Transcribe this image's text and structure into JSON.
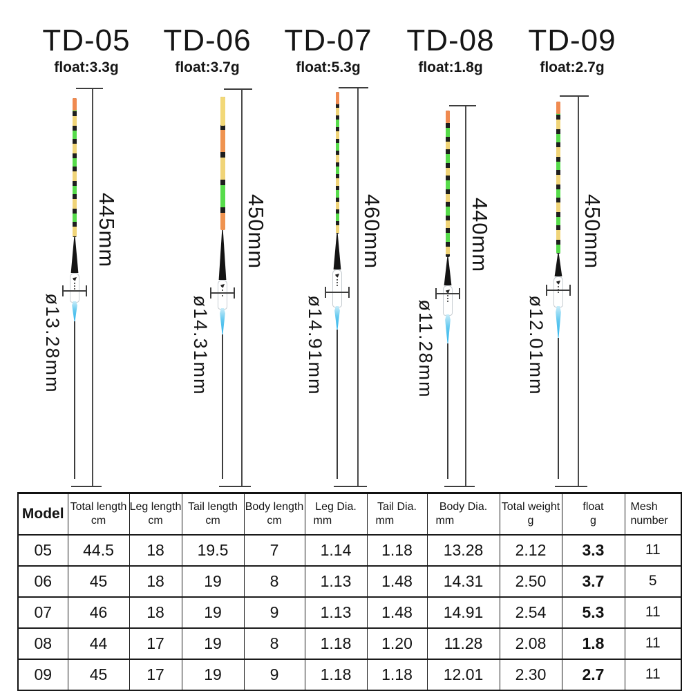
{
  "products": [
    {
      "model": "TD-05",
      "float_label": "float:3.3g",
      "length_label": "445mm",
      "diameter_label": "ø13.28mm"
    },
    {
      "model": "TD-06",
      "float_label": "float:3.7g",
      "length_label": "450mm",
      "diameter_label": "ø14.31mm"
    },
    {
      "model": "TD-07",
      "float_label": "float:5.3g",
      "length_label": "460mm",
      "diameter_label": "ø14.91mm"
    },
    {
      "model": "TD-08",
      "float_label": "float:1.8g",
      "length_label": "440mm",
      "diameter_label": "ø11.28mm"
    },
    {
      "model": "TD-09",
      "float_label": "float:2.7g",
      "length_label": "450mm",
      "diameter_label": "ø12.01mm"
    }
  ],
  "colors": {
    "background": "#ffffff",
    "antenna_tip_orange": "#f08a50",
    "antenna_tip_yellow": "#f2d878",
    "stripe_green": "#57dc4b",
    "stripe_yellow": "#f0d478",
    "stripe_band_black": "#1e1e1e",
    "body_white": "#ffffff",
    "bulb_blue": "#2eb2ea",
    "dimension_line": "#3d3d3d",
    "table_border": "#1a1a1a",
    "text": "#131313"
  },
  "table": {
    "headers": [
      [
        "Model",
        ""
      ],
      [
        "Total length",
        "cm"
      ],
      [
        "Leg length",
        "cm"
      ],
      [
        "Tail length",
        "cm"
      ],
      [
        "Body length",
        "cm"
      ],
      [
        "Leg Dia.",
        "mm"
      ],
      [
        "Tail Dia.",
        "mm"
      ],
      [
        "Body Dia.",
        "mm"
      ],
      [
        "Total weight",
        "g"
      ],
      [
        "float",
        "g"
      ],
      [
        "Mesh",
        "number"
      ]
    ],
    "rows": [
      [
        "05",
        "44.5",
        "18",
        "19.5",
        "7",
        "1.14",
        "1.18",
        "13.28",
        "2.12",
        "3.3",
        "11"
      ],
      [
        "06",
        "45",
        "18",
        "19",
        "8",
        "1.13",
        "1.48",
        "14.31",
        "2.50",
        "3.7",
        "5"
      ],
      [
        "07",
        "46",
        "18",
        "19",
        "9",
        "1.13",
        "1.48",
        "14.91",
        "2.54",
        "5.3",
        "11"
      ],
      [
        "08",
        "44",
        "17",
        "19",
        "8",
        "1.18",
        "1.20",
        "11.28",
        "2.08",
        "1.8",
        "11"
      ],
      [
        "09",
        "45",
        "17",
        "19",
        "9",
        "1.18",
        "1.18",
        "12.01",
        "2.30",
        "2.7",
        "11"
      ]
    ]
  }
}
